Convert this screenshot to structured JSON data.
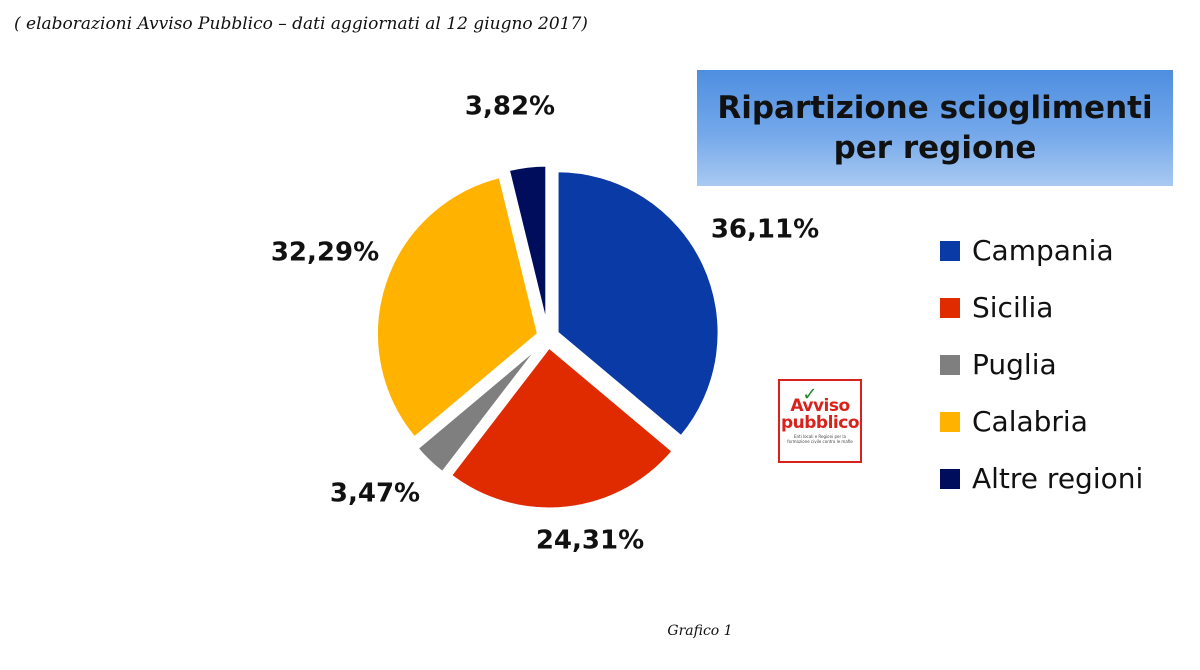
{
  "source_note": "( elaborazioni Avviso Pubblico – dati aggiornati al 12 giugno 2017)",
  "caption": "Grafico 1",
  "logo": {
    "line1": "Avviso",
    "line2": "pubblico",
    "tagline": "Enti locali e Regioni per la formazione civile contro le mafie"
  },
  "chart_data": {
    "type": "pie",
    "title": "Ripartizione scioglimenti per regione",
    "title_lines": [
      "Ripartizione scioglimenti",
      "per regione"
    ],
    "legend_position": "right",
    "exploded": true,
    "slices": [
      {
        "name": "Campania",
        "value": 36.11,
        "label": "36,11%",
        "color": "#0a3aa6"
      },
      {
        "name": "Sicilia",
        "value": 24.31,
        "label": "24,31%",
        "color": "#e02a00"
      },
      {
        "name": "Puglia",
        "value": 3.47,
        "label": "3,47%",
        "color": "#7f7f7f"
      },
      {
        "name": "Calabria",
        "value": 32.29,
        "label": "32,29%",
        "color": "#ffb300"
      },
      {
        "name": "Altre regioni",
        "value": 3.82,
        "label": "3,82%",
        "color": "#000d5c"
      }
    ]
  }
}
